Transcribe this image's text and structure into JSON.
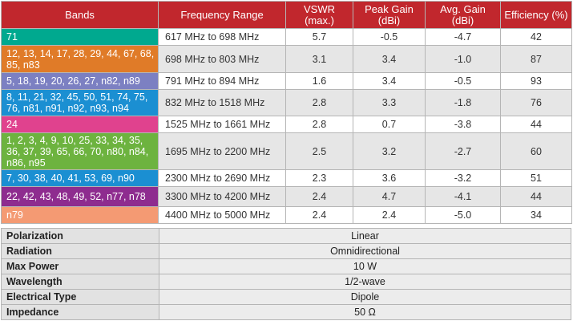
{
  "headers": [
    "Bands",
    "Frequency Range",
    "VSWR (max.)",
    "Peak Gain (dBi)",
    "Avg. Gain (dBi)",
    "Efficiency (%)"
  ],
  "rows": [
    {
      "bands": "71",
      "freq": "617 MHz to 698 MHz",
      "vswr": "5.7",
      "peak": "-0.5",
      "avg": "-4.7",
      "eff": "42",
      "color": "#00a98f"
    },
    {
      "bands": "12, 13, 14, 17, 28, 29, 44, 67, 68, 85, n83",
      "freq": "698 MHz to 803 MHz",
      "vswr": "3.1",
      "peak": "3.4",
      "avg": "-1.0",
      "eff": "87",
      "color": "#e07b28"
    },
    {
      "bands": "5, 18, 19, 20, 26, 27, n82, n89",
      "freq": "791 MHz to 894 MHz",
      "vswr": "1.6",
      "peak": "3.4",
      "avg": "-0.5",
      "eff": "93",
      "color": "#7c80c2"
    },
    {
      "bands": "8, 11, 21, 32, 45, 50, 51, 74, 75, 76, n81, n91, n92, n93, n94",
      "freq": "832 MHz to 1518 MHz",
      "vswr": "2.8",
      "peak": "3.3",
      "avg": "-1.8",
      "eff": "76",
      "color": "#1b8fd2"
    },
    {
      "bands": "24",
      "freq": "1525 MHz to 1661 MHz",
      "vswr": "2.8",
      "peak": "0.7",
      "avg": "-3.8",
      "eff": "44",
      "color": "#e0428e"
    },
    {
      "bands": "1, 2, 3, 4, 9, 10, 25, 33, 34, 35, 36, 37, 39, 65, 66, 70, n80, n84, n86, n95",
      "freq": "1695 MHz to 2200 MHz",
      "vswr": "2.5",
      "peak": "3.2",
      "avg": "-2.7",
      "eff": "60",
      "color": "#6db33f"
    },
    {
      "bands": "7, 30, 38, 40, 41, 53, 69, n90",
      "freq": "2300 MHz to 2690 MHz",
      "vswr": "2.3",
      "peak": "3.6",
      "avg": "-3.2",
      "eff": "51",
      "color": "#1b8fd2"
    },
    {
      "bands": "22, 42, 43, 48, 49, 52, n77, n78",
      "freq": "3300 MHz to 4200 MHz",
      "vswr": "2.4",
      "peak": "4.7",
      "avg": "-4.1",
      "eff": "44",
      "color": "#8e2c8f"
    },
    {
      "bands": "n79",
      "freq": "4400 MHz to 5000 MHz",
      "vswr": "2.4",
      "peak": "2.4",
      "avg": "-5.0",
      "eff": "34",
      "color": "#f49a73"
    }
  ],
  "specs": [
    {
      "k": "Polarization",
      "v": "Linear"
    },
    {
      "k": "Radiation",
      "v": "Omnidirectional"
    },
    {
      "k": "Max Power",
      "v": "10 W"
    },
    {
      "k": "Wavelength",
      "v": "1/2-wave"
    },
    {
      "k": "Electrical Type",
      "v": "Dipole"
    },
    {
      "k": "Impedance",
      "v": "50 Ω"
    }
  ]
}
